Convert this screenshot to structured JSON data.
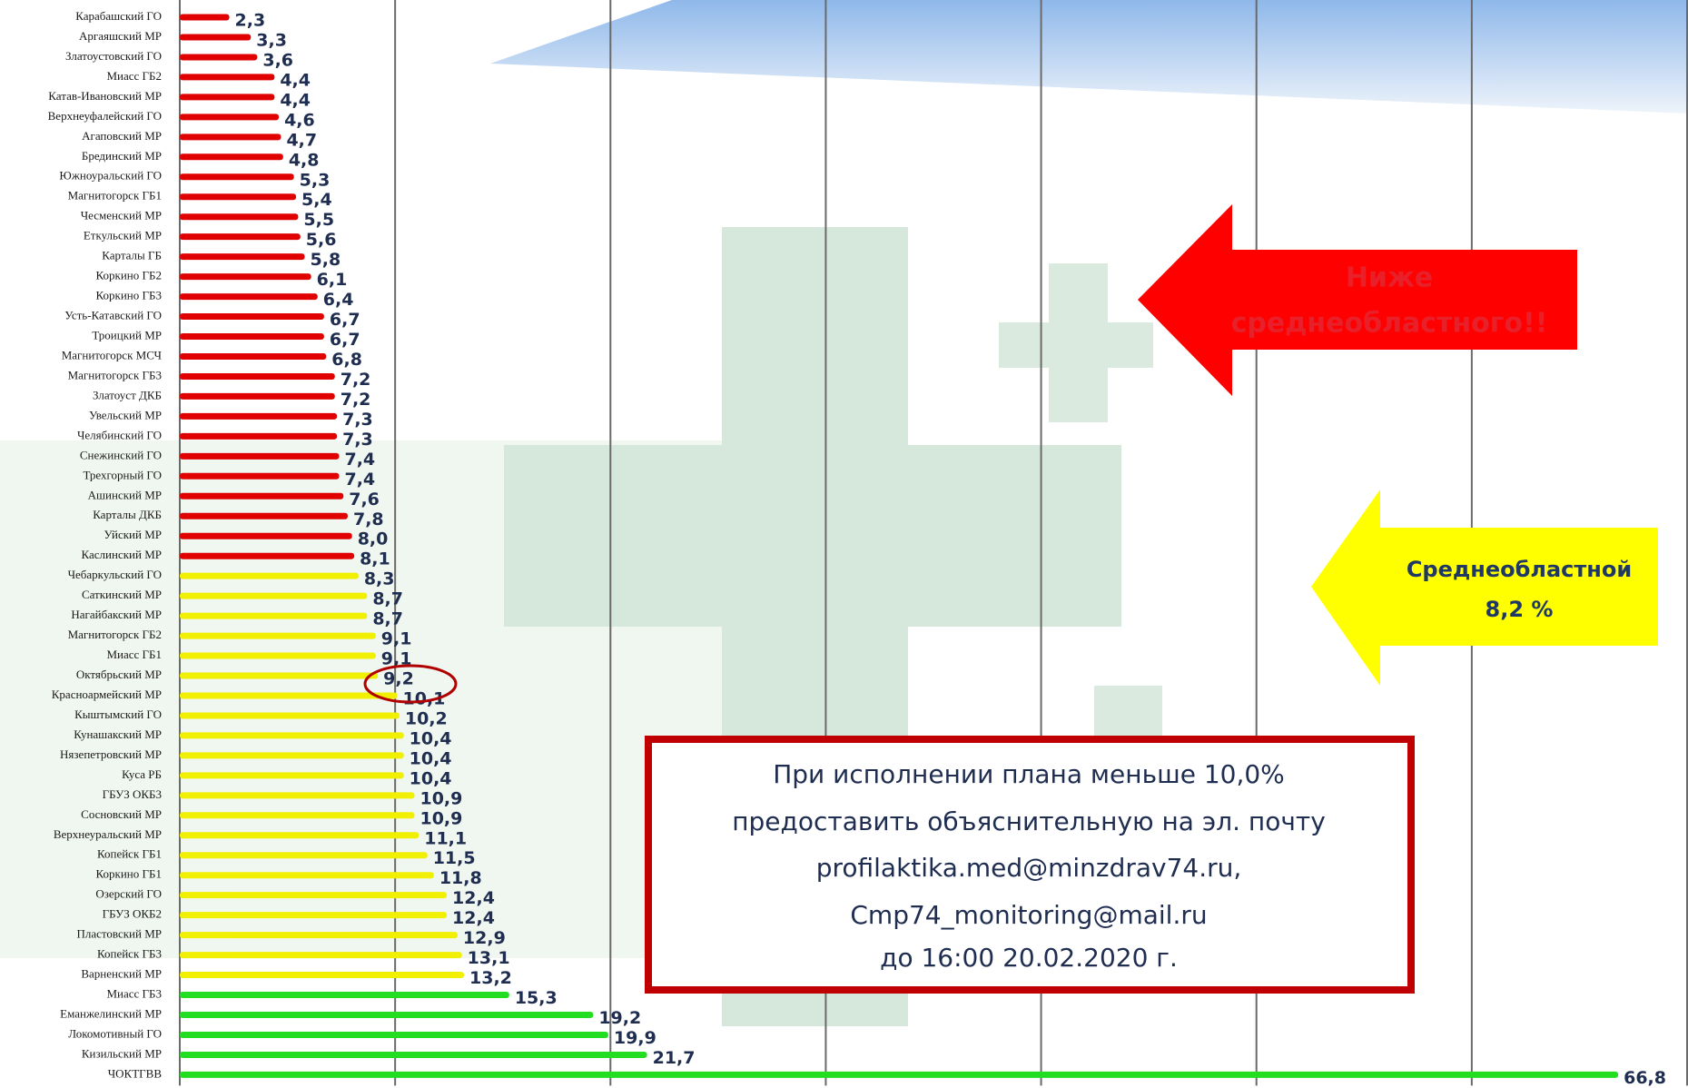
{
  "chart_data": {
    "type": "hbar",
    "categories": [
      "Карабашский ГО",
      "Аргаяшский МР",
      "Златоустовский ГО",
      "Миасс ГБ2",
      "Катав-Ивановский МР",
      "Верхнеуфалейский ГО",
      "Агаповский МР",
      "Брединский МР",
      "Южноуральский ГО",
      "Магнитогорск ГБ1",
      "Чесменский МР",
      "Еткульский МР",
      "Карталы ГБ",
      "Коркино ГБ2",
      "Коркино ГБ3",
      "Усть-Катавский ГО",
      "Троицкий МР",
      "Магнитогорск МСЧ",
      "Магнитогорск ГБ3",
      "Златоуст ДКБ",
      "Увельский МР",
      "Челябинский ГО",
      "Снежинский ГО",
      "Трехгорный ГО",
      "Ашинский МР",
      "Карталы ДКБ",
      "Уйский МР",
      "Каслинский МР",
      "Чебаркульский ГО",
      "Саткинский МР",
      "Нагайбакский МР",
      "Магнитогорск ГБ2",
      "Миасс ГБ1",
      "Октябрьский МР",
      "Красноармейский МР",
      "Кыштымский ГО",
      "Кунашакский МР",
      "Нязепетровский МР",
      "Куса РБ",
      "ГБУЗ ОКБ3",
      "Сосновский МР",
      "Верхнеуральский МР",
      "Копейск ГБ1",
      "Коркино ГБ1",
      "Озерский ГО",
      "ГБУЗ ОКБ2",
      "Пластовский МР",
      "Копейск ГБ3",
      "Варненский МР",
      "Миасс ГБ3",
      "Еманжелинский МР",
      "Локомотивный ГО",
      "Кизильский МР",
      "ЧОКТГВВ"
    ],
    "values": [
      2.3,
      3.3,
      3.6,
      4.4,
      4.4,
      4.6,
      4.7,
      4.8,
      5.3,
      5.4,
      5.5,
      5.6,
      5.8,
      6.1,
      6.4,
      6.7,
      6.7,
      6.8,
      7.2,
      7.2,
      7.3,
      7.3,
      7.4,
      7.4,
      7.6,
      7.8,
      8.0,
      8.1,
      8.3,
      8.7,
      8.7,
      9.1,
      9.1,
      9.2,
      10.1,
      10.2,
      10.4,
      10.4,
      10.4,
      10.9,
      10.9,
      11.1,
      11.5,
      11.8,
      12.4,
      12.4,
      12.9,
      13.1,
      13.2,
      15.3,
      19.2,
      19.9,
      21.7,
      66.8
    ],
    "value_labels": [
      "2,3",
      "3,3",
      "3,6",
      "4,4",
      "4,4",
      "4,6",
      "4,7",
      "4,8",
      "5,3",
      "5,4",
      "5,5",
      "5,6",
      "5,8",
      "6,1",
      "6,4",
      "6,7",
      "6,7",
      "6,8",
      "7,2",
      "7,2",
      "7,3",
      "7,3",
      "7,4",
      "7,4",
      "7,6",
      "7,8",
      "8,0",
      "8,1",
      "8,3",
      "8,7",
      "8,7",
      "9,1",
      "9,1",
      "9,2",
      "10,1",
      "10,2",
      "10,4",
      "10,4",
      "10,4",
      "10,9",
      "10,9",
      "11,1",
      "11,5",
      "11,8",
      "12,4",
      "12,4",
      "12,9",
      "13,1",
      "13,2",
      "15,3",
      "19,2",
      "19,9",
      "21,7",
      "66,8"
    ],
    "colors": [
      "#e00000",
      "#e00000",
      "#e00000",
      "#e00000",
      "#e00000",
      "#e00000",
      "#e00000",
      "#e00000",
      "#e00000",
      "#e00000",
      "#e00000",
      "#e00000",
      "#e00000",
      "#e00000",
      "#e00000",
      "#e00000",
      "#e00000",
      "#e00000",
      "#e00000",
      "#e00000",
      "#e00000",
      "#e00000",
      "#e00000",
      "#e00000",
      "#e00000",
      "#e00000",
      "#e00000",
      "#e00000",
      "#f0f000",
      "#f0f000",
      "#f0f000",
      "#f0f000",
      "#f0f000",
      "#f0f000",
      "#f0f000",
      "#f0f000",
      "#f0f000",
      "#f0f000",
      "#f0f000",
      "#f0f000",
      "#f0f000",
      "#f0f000",
      "#f0f000",
      "#f0f000",
      "#f0f000",
      "#f0f000",
      "#f0f000",
      "#f0f000",
      "#f0f000",
      "#22dd22",
      "#22dd22",
      "#22dd22",
      "#22dd22",
      "#22dd22"
    ],
    "xlim": [
      0,
      70
    ],
    "xticks": [
      0,
      10,
      20,
      30,
      40,
      50,
      60,
      70
    ],
    "grid": true,
    "annotations": {
      "below": [
        "Ниже",
        "среднеобластного!!"
      ],
      "average": [
        "Среднеобластной",
        "8,2 %"
      ],
      "note": [
        "При исполнении плана меньше 10,0%",
        "предоставить объяснительную на эл. почту",
        "profilaktika.med@minzdrav74.ru,",
        "Cmp74_monitoring@mail.ru",
        "до 16:00 20.02.2020 г."
      ]
    }
  }
}
